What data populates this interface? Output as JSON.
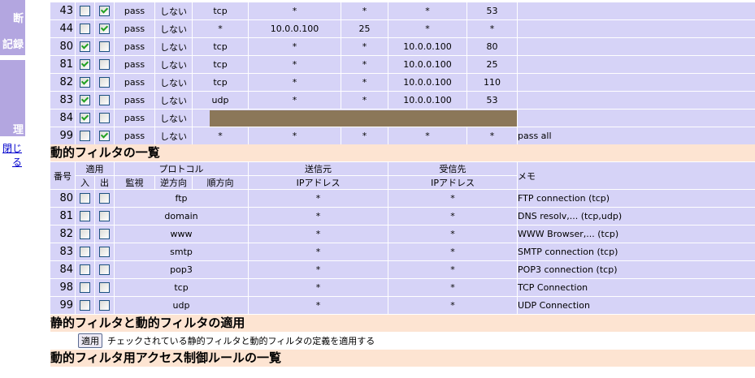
{
  "sidebar": {
    "item1": "断",
    "item2": "記録",
    "item3": "理",
    "close_link": "閉じる"
  },
  "static_rows": [
    {
      "num": "43",
      "in": false,
      "out": true,
      "action": "pass",
      "log": "しない",
      "proto": "tcp",
      "src_ip": "*",
      "src_port": "*",
      "dst_ip": "*",
      "dst_port": "53",
      "memo": ""
    },
    {
      "num": "44",
      "in": false,
      "out": true,
      "action": "pass",
      "log": "しない",
      "proto": "*",
      "src_ip": "10.0.0.100",
      "src_port": "25",
      "dst_ip": "*",
      "dst_port": "*",
      "memo": ""
    },
    {
      "num": "80",
      "in": true,
      "out": false,
      "action": "pass",
      "log": "しない",
      "proto": "tcp",
      "src_ip": "*",
      "src_port": "*",
      "dst_ip": "10.0.0.100",
      "dst_port": "80",
      "memo": ""
    },
    {
      "num": "81",
      "in": true,
      "out": false,
      "action": "pass",
      "log": "しない",
      "proto": "tcp",
      "src_ip": "*",
      "src_port": "*",
      "dst_ip": "10.0.0.100",
      "dst_port": "25",
      "memo": ""
    },
    {
      "num": "82",
      "in": true,
      "out": false,
      "action": "pass",
      "log": "しない",
      "proto": "tcp",
      "src_ip": "*",
      "src_port": "*",
      "dst_ip": "10.0.0.100",
      "dst_port": "110",
      "memo": ""
    },
    {
      "num": "83",
      "in": true,
      "out": false,
      "action": "pass",
      "log": "しない",
      "proto": "udp",
      "src_ip": "*",
      "src_port": "*",
      "dst_ip": "10.0.0.100",
      "dst_port": "53",
      "memo": ""
    },
    {
      "num": "84",
      "in": true,
      "out": false,
      "action": "pass",
      "log": "しない",
      "redacted": true,
      "memo": ""
    },
    {
      "num": "99",
      "in": false,
      "out": true,
      "action": "pass",
      "log": "しない",
      "proto": "*",
      "src_ip": "*",
      "src_port": "*",
      "dst_ip": "*",
      "dst_port": "*",
      "memo": "pass all"
    }
  ],
  "dynamic": {
    "title": "動的フィルタの一覧",
    "headers": {
      "num": "番号",
      "apply": "適用",
      "in": "入",
      "out": "出",
      "protocol": "プロトコル",
      "monitor": "監視",
      "reverse": "逆方向",
      "forward": "順方向",
      "src": "送信元",
      "src_ip": "IPアドレス",
      "dst": "受信先",
      "dst_ip": "IPアドレス",
      "memo": "メモ"
    },
    "rows": [
      {
        "num": "80",
        "in": false,
        "out": false,
        "proto": "ftp",
        "src": "*",
        "dst": "*",
        "memo": "FTP connection (tcp)"
      },
      {
        "num": "81",
        "in": false,
        "out": false,
        "proto": "domain",
        "src": "*",
        "dst": "*",
        "memo": "DNS resolv,... (tcp,udp)"
      },
      {
        "num": "82",
        "in": false,
        "out": false,
        "proto": "www",
        "src": "*",
        "dst": "*",
        "memo": "WWW Browser,... (tcp)"
      },
      {
        "num": "83",
        "in": false,
        "out": false,
        "proto": "smtp",
        "src": "*",
        "dst": "*",
        "memo": "SMTP connection (tcp)"
      },
      {
        "num": "84",
        "in": false,
        "out": false,
        "proto": "pop3",
        "src": "*",
        "dst": "*",
        "memo": "POP3 connection (tcp)"
      },
      {
        "num": "98",
        "in": false,
        "out": false,
        "proto": "tcp",
        "src": "*",
        "dst": "*",
        "memo": "TCP Connection"
      },
      {
        "num": "99",
        "in": false,
        "out": false,
        "proto": "udp",
        "src": "*",
        "dst": "*",
        "memo": "UDP Connection"
      }
    ]
  },
  "apply_section": {
    "title": "静的フィルタと動的フィルタの適用",
    "button": "適用",
    "description": "チェックされている静的フィルタと動的フィルタの定義を適用する"
  },
  "acl_section": {
    "title": "動的フィルタ用アクセス制御ルールの一覧"
  }
}
